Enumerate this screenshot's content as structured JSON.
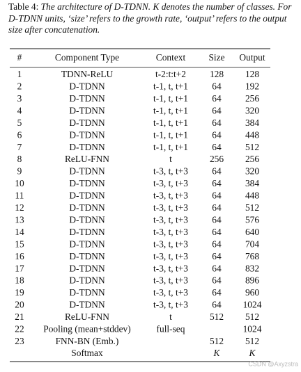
{
  "caption": {
    "label": "Table 4:",
    "text": "The architecture of D-TDNN. K denotes the number of classes. For D-TDNN units, ‘size’ refers to the growth rate, ‘output’ refers to the output size after concatenation."
  },
  "table": {
    "header": [
      "#",
      "Component Type",
      "Context",
      "Size",
      "Output"
    ],
    "rows": [
      [
        1,
        "TDNN-ReLU",
        "t-2:t:t+2",
        128,
        128
      ],
      [
        2,
        "D-TDNN",
        "t-1, t, t+1",
        64,
        192
      ],
      [
        3,
        "D-TDNN",
        "t-1, t, t+1",
        64,
        256
      ],
      [
        4,
        "D-TDNN",
        "t-1, t, t+1",
        64,
        320
      ],
      [
        5,
        "D-TDNN",
        "t-1, t, t+1",
        64,
        384
      ],
      [
        6,
        "D-TDNN",
        "t-1, t, t+1",
        64,
        448
      ],
      [
        7,
        "D-TDNN",
        "t-1, t, t+1",
        64,
        512
      ],
      [
        8,
        "ReLU-FNN",
        "t",
        256,
        256
      ],
      [
        9,
        "D-TDNN",
        "t-3, t, t+3",
        64,
        320
      ],
      [
        10,
        "D-TDNN",
        "t-3, t, t+3",
        64,
        384
      ],
      [
        11,
        "D-TDNN",
        "t-3, t, t+3",
        64,
        448
      ],
      [
        12,
        "D-TDNN",
        "t-3, t, t+3",
        64,
        512
      ],
      [
        13,
        "D-TDNN",
        "t-3, t, t+3",
        64,
        576
      ],
      [
        14,
        "D-TDNN",
        "t-3, t, t+3",
        64,
        640
      ],
      [
        15,
        "D-TDNN",
        "t-3, t, t+3",
        64,
        704
      ],
      [
        16,
        "D-TDNN",
        "t-3, t, t+3",
        64,
        768
      ],
      [
        17,
        "D-TDNN",
        "t-3, t, t+3",
        64,
        832
      ],
      [
        18,
        "D-TDNN",
        "t-3, t, t+3",
        64,
        896
      ],
      [
        19,
        "D-TDNN",
        "t-3, t, t+3",
        64,
        960
      ],
      [
        20,
        "D-TDNN",
        "t-3, t, t+3",
        64,
        1024
      ],
      [
        21,
        "ReLU-FNN",
        "t",
        512,
        512
      ],
      [
        22,
        "Pooling (mean+stddev)",
        "full-seq",
        null,
        1024
      ],
      [
        23,
        "FNN-BN (Emb.)",
        null,
        512,
        512
      ],
      [
        null,
        "Softmax",
        null,
        "K",
        "K"
      ]
    ]
  },
  "watermark": "CSDN @Axyzstra"
}
